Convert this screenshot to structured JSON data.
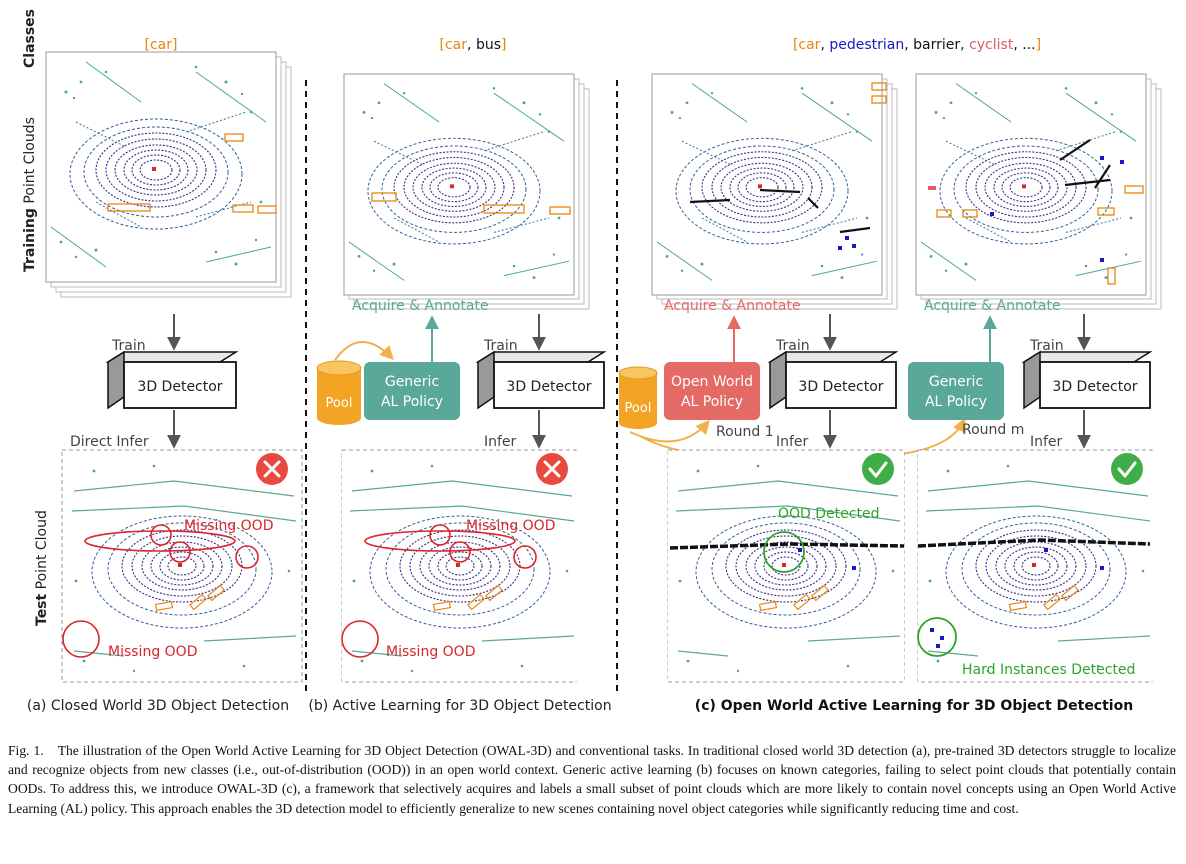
{
  "colors": {
    "car": "#e8870f",
    "pedestrian": "#1a16c9",
    "barrier": "#111111",
    "cyclist": "#e55a60",
    "teal": "#5aa899",
    "red_policy": "#e46a66",
    "pool": "#f3a425",
    "cross": "#e84a3f",
    "check": "#3fae49",
    "ood_red": "#d8262b",
    "ood_green": "#2ea52a"
  },
  "row_labels": {
    "classes": "Classes",
    "training_bold": "Training",
    "training_rest": " Point Clouds",
    "test_bold": "Test",
    "test_rest": " Point Cloud"
  },
  "classes": {
    "a": [
      "car"
    ],
    "b": [
      "car",
      "bus"
    ],
    "c": [
      "car",
      "pedestrian",
      "barrier",
      "cyclist",
      "..."
    ]
  },
  "labels": {
    "train": "Train",
    "detector": "3D Detector",
    "direct_infer": "Direct Infer",
    "infer": "Infer",
    "acquire_annotate": "Acquire & Annotate",
    "pool": "Pool",
    "generic_policy_line1": "Generic",
    "generic_policy_line2": "AL Policy",
    "open_policy_line1": "Open World",
    "open_policy_line2": "AL Policy",
    "round_1": "Round 1",
    "round_m": "Round m",
    "missing_ood": "Missing OOD",
    "ood_detected": "OOD Detected",
    "hard_instances": "Hard Instances Detected"
  },
  "panel_titles": {
    "a": "(a) Closed World 3D Object Detection",
    "b": "(b) Active Learning for  3D Object Detection",
    "c": "(c) Open World Active Learning for 3D Object Detection"
  },
  "caption": {
    "label": "Fig. 1.",
    "text": "The illustration of the Open World Active Learning for 3D Object Detection (OWAL-3D) and conventional tasks. In traditional closed world 3D detection (a), pre-trained 3D detectors struggle to localize and recognize objects from new classes (i.e., out-of-distribution (OOD)) in an open world context. Generic active learning (b) focuses on known categories, failing to select point clouds that potentially contain OODs. To address this, we introduce OWAL-3D (c), a framework that selectively acquires and labels a small subset of point clouds which are more likely to contain novel concepts using an Open World Active Learning (AL) policy. This approach enables the 3D detection model to efficiently generalize to new scenes containing novel object categories while significantly reducing time and cost."
  }
}
